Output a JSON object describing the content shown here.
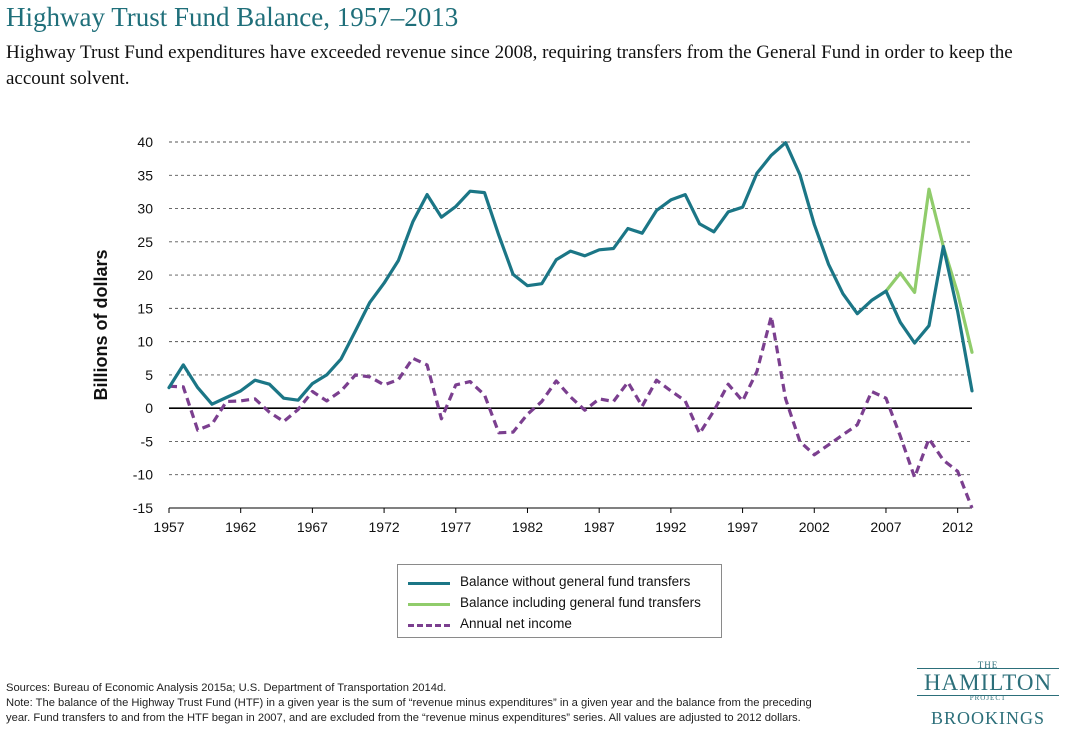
{
  "header": {
    "title": "Highway Trust Fund Balance, 1957–2013",
    "subtitle": "Highway Trust Fund expenditures have exceeded revenue since 2008, requiring transfers from the General Fund in order to keep the account solvent."
  },
  "chart_data": {
    "type": "line",
    "title": "Highway Trust Fund Balance, 1957–2013",
    "ylabel": "Billions of dollars",
    "xlabel": "",
    "xlim": [
      1957,
      2013
    ],
    "ylim": [
      -15,
      40
    ],
    "x_ticks": [
      "1957",
      "1962",
      "1967",
      "1972",
      "1977",
      "1982",
      "1987",
      "1992",
      "1997",
      "2002",
      "2007",
      "2012"
    ],
    "y_ticks": [
      "40",
      "35",
      "30",
      "25",
      "20",
      "15",
      "10",
      "5",
      "0",
      "-5",
      "-10",
      "-15"
    ],
    "grid": "horizontal dashed",
    "legend_placement": "bottom-center",
    "series": [
      {
        "name": "Balance without general fund transfers",
        "color": "#1b7686",
        "style": "solid",
        "x": [
          1957,
          1958,
          1959,
          1960,
          1961,
          1962,
          1963,
          1964,
          1965,
          1966,
          1967,
          1968,
          1969,
          1970,
          1971,
          1972,
          1973,
          1974,
          1975,
          1976,
          1977,
          1978,
          1979,
          1980,
          1981,
          1982,
          1983,
          1984,
          1985,
          1986,
          1987,
          1988,
          1989,
          1990,
          1991,
          1992,
          1993,
          1994,
          1995,
          1996,
          1997,
          1998,
          1999,
          2000,
          2001,
          2002,
          2003,
          2004,
          2005,
          2006,
          2007,
          2008,
          2009,
          2010,
          2011,
          2012,
          2013
        ],
        "values": [
          3.1,
          6.5,
          3.1,
          0.6,
          1.6,
          2.6,
          4.2,
          3.6,
          1.5,
          1.2,
          3.7,
          5.0,
          7.4,
          11.6,
          15.9,
          18.8,
          22.2,
          28.0,
          32.1,
          28.7,
          30.3,
          32.6,
          32.4,
          26.0,
          20.1,
          18.4,
          18.7,
          22.3,
          23.6,
          22.9,
          23.8,
          24.0,
          27.0,
          26.3,
          29.7,
          31.3,
          32.1,
          27.7,
          26.5,
          29.5,
          30.2,
          35.3,
          38.0,
          39.9,
          35.1,
          27.6,
          21.6,
          17.2,
          14.2,
          16.2,
          17.6,
          12.9,
          9.8,
          12.4,
          24.3,
          14.5,
          2.6
        ]
      },
      {
        "name": "Balance including general fund transfers",
        "color": "#90cc6b",
        "style": "solid",
        "x": [
          2007,
          2008,
          2009,
          2010,
          2011,
          2012,
          2013
        ],
        "values": [
          17.6,
          20.3,
          17.4,
          32.9,
          24.3,
          17.3,
          8.4
        ]
      },
      {
        "name": "Annual net income",
        "color": "#7b3f8f",
        "style": "dashed",
        "x": [
          1957,
          1958,
          1959,
          1960,
          1961,
          1962,
          1963,
          1964,
          1965,
          1966,
          1967,
          1968,
          1969,
          1970,
          1971,
          1972,
          1973,
          1974,
          1975,
          1976,
          1977,
          1978,
          1979,
          1980,
          1981,
          1982,
          1983,
          1984,
          1985,
          1986,
          1987,
          1988,
          1989,
          1990,
          1991,
          1992,
          1993,
          1994,
          1995,
          1996,
          1997,
          1998,
          1999,
          2000,
          2001,
          2002,
          2003,
          2004,
          2005,
          2006,
          2007,
          2008,
          2009,
          2010,
          2011,
          2012,
          2013
        ],
        "values": [
          3.3,
          3.2,
          -3.3,
          -2.4,
          1.0,
          1.1,
          1.4,
          -0.6,
          -2.0,
          -0.2,
          2.5,
          1.1,
          2.6,
          5.0,
          4.7,
          3.5,
          4.3,
          7.5,
          6.5,
          -1.6,
          3.5,
          4.0,
          2.0,
          -3.7,
          -3.6,
          -0.9,
          1.0,
          4.1,
          1.7,
          -0.3,
          1.4,
          1.0,
          3.9,
          0.3,
          4.2,
          2.6,
          1.1,
          -3.8,
          -0.4,
          3.6,
          1.1,
          5.5,
          13.8,
          1.4,
          -5.0,
          -7.0,
          -5.5,
          -4.0,
          -2.5,
          2.5,
          1.5,
          -4.2,
          -10.4,
          -4.6,
          -7.8,
          -9.5,
          -15.0
        ]
      }
    ]
  },
  "legend": {
    "items": [
      {
        "label": "Balance without general fund transfers",
        "color": "#1b7686",
        "style": "solid"
      },
      {
        "label": "Balance including general fund transfers",
        "color": "#90cc6b",
        "style": "solid"
      },
      {
        "label": "Annual net income",
        "color": "#7b3f8f",
        "style": "dashed"
      }
    ]
  },
  "footer": {
    "sources": "Sources: Bureau of Economic Analysis 2015a; U.S. Department of Transportation 2014d.",
    "note_line1": "Note: The balance of the Highway Trust Fund (HTF) in a given year is the sum of “revenue minus expenditures” in a given year and the balance from the preceding",
    "note_line2": "year. Fund transfers to and from the HTF began in 2007, and are excluded from the “revenue minus expenditures” series. All values are adjusted to 2012 dollars."
  },
  "logo": {
    "the": "THE",
    "hamilton": "HAMILTON",
    "project": "PROJECT",
    "brookings": "BROOKINGS"
  }
}
